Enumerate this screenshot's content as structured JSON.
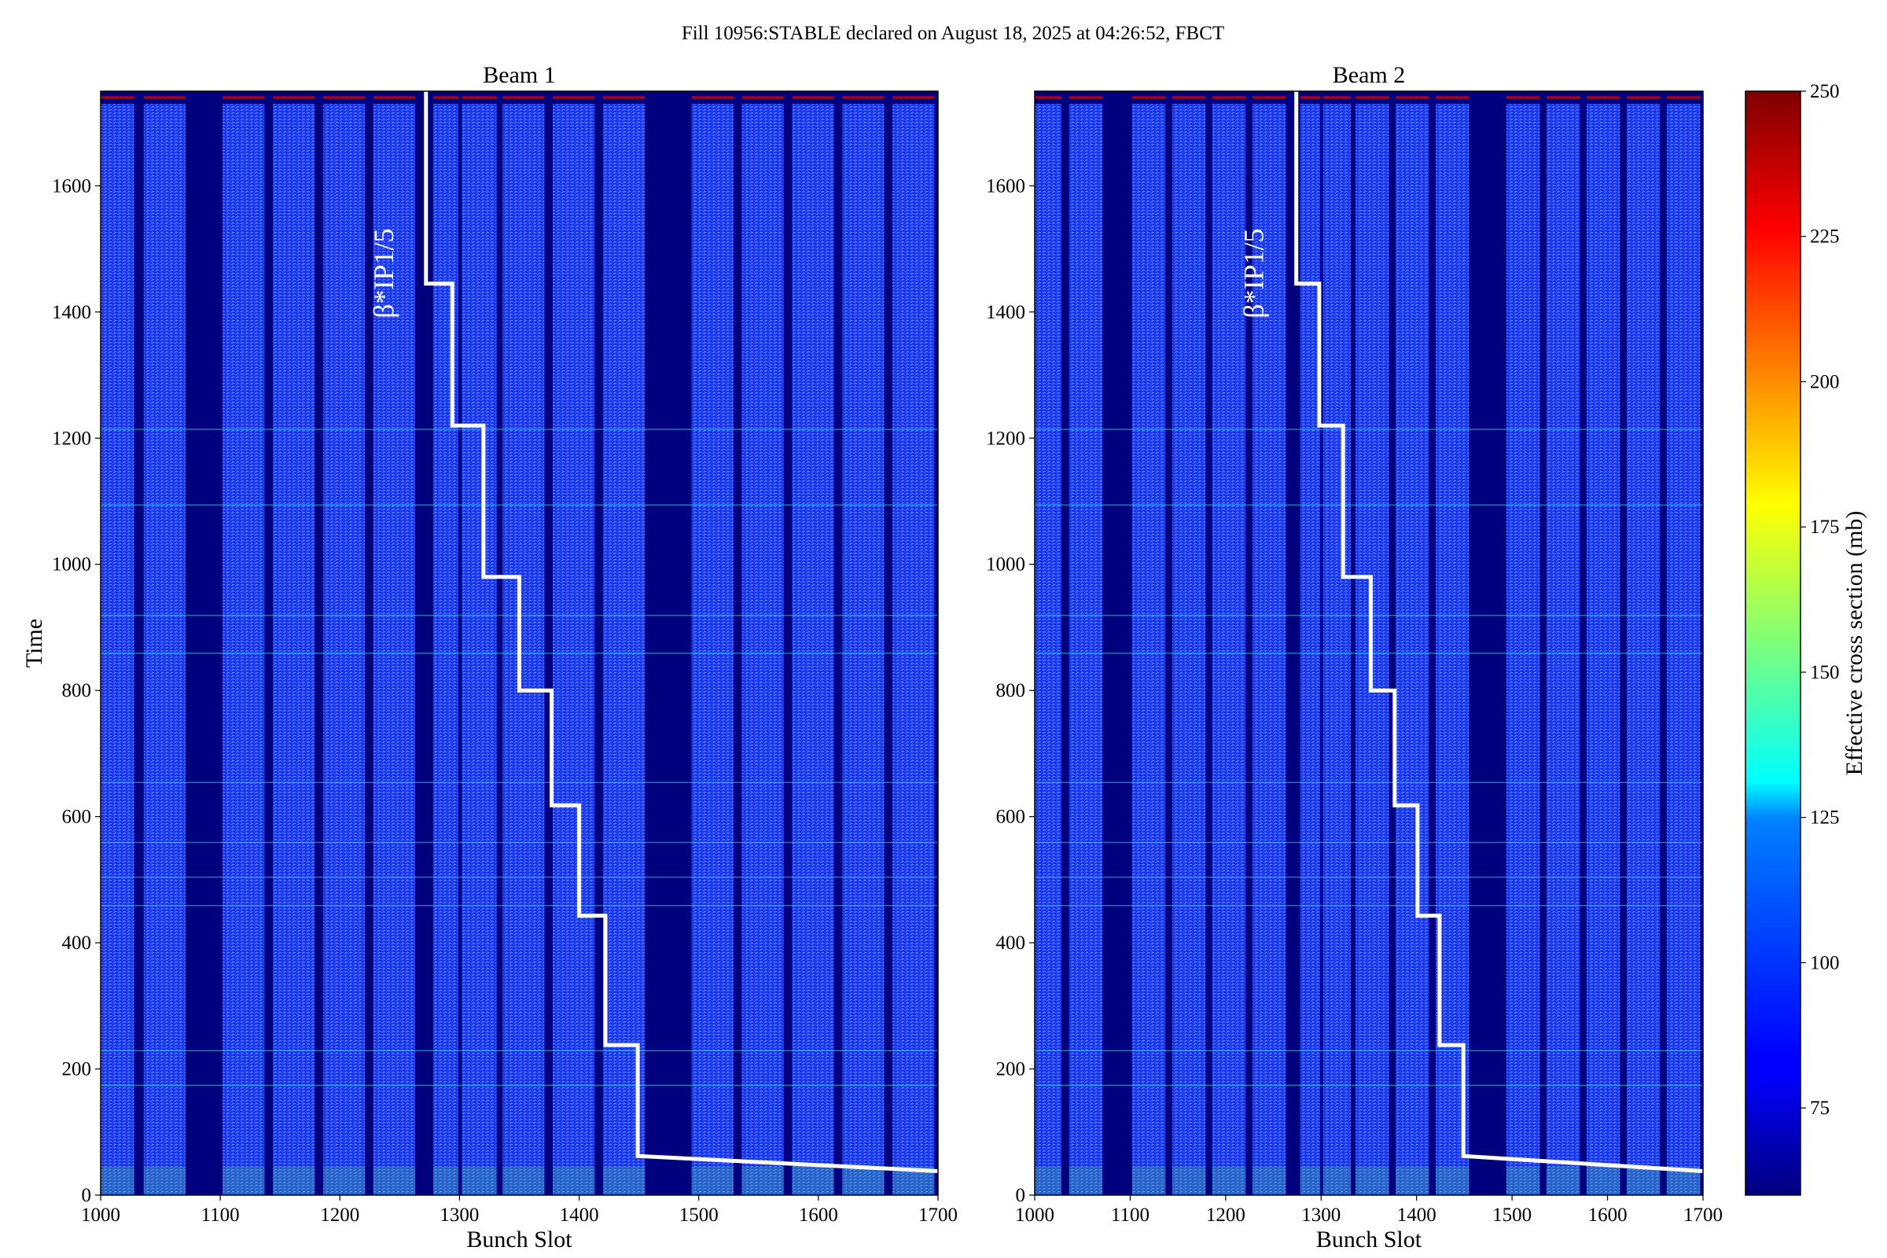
{
  "figure": {
    "suptitle": "Fill 10956:STABLE declared on August 18, 2025 at 04:26:52, FBCT"
  },
  "chart_data": [
    {
      "type": "heatmap",
      "title": "Beam 1",
      "xlabel": "Bunch Slot",
      "ylabel": "Time",
      "xlim": [
        1000,
        1700
      ],
      "ylim": [
        0,
        1750
      ],
      "x_ticks": [
        1000,
        1100,
        1200,
        1300,
        1400,
        1500,
        1600,
        1700
      ],
      "y_ticks": [
        0,
        200,
        400,
        600,
        800,
        1000,
        1200,
        1400,
        1600
      ],
      "filled_bunch_trains": [
        [
          1000,
          1028
        ],
        [
          1036,
          1071
        ],
        [
          1102,
          1137
        ],
        [
          1144,
          1179
        ],
        [
          1186,
          1221
        ],
        [
          1228,
          1263
        ],
        [
          1278,
          1299
        ],
        [
          1302,
          1331
        ],
        [
          1336,
          1371
        ],
        [
          1378,
          1413
        ],
        [
          1420,
          1455
        ],
        [
          1494,
          1529
        ],
        [
          1536,
          1571
        ],
        [
          1578,
          1613
        ],
        [
          1620,
          1655
        ],
        [
          1662,
          1697
        ]
      ],
      "colorscale": "jet",
      "annotation": "β*IP1/5",
      "beta_star_line": {
        "x": [
          1272,
          1272,
          1294,
          1294,
          1320,
          1320,
          1350,
          1350,
          1377,
          1377,
          1400,
          1400,
          1422,
          1422,
          1449,
          1449,
          1700
        ],
        "y": [
          1750,
          1445,
          1445,
          1220,
          1220,
          980,
          980,
          800,
          800,
          618,
          618,
          443,
          443,
          238,
          238,
          62,
          38
        ]
      }
    },
    {
      "type": "heatmap",
      "title": "Beam 2",
      "xlabel": "Bunch Slot",
      "ylabel": "",
      "xlim": [
        1000,
        1700
      ],
      "ylim": [
        0,
        1750
      ],
      "x_ticks": [
        1000,
        1100,
        1200,
        1300,
        1400,
        1500,
        1600,
        1700
      ],
      "y_ticks": [
        0,
        200,
        400,
        600,
        800,
        1000,
        1200,
        1400,
        1600
      ],
      "filled_bunch_trains": [
        [
          1000,
          1028
        ],
        [
          1036,
          1071
        ],
        [
          1102,
          1137
        ],
        [
          1144,
          1179
        ],
        [
          1186,
          1221
        ],
        [
          1228,
          1263
        ],
        [
          1278,
          1299
        ],
        [
          1302,
          1331
        ],
        [
          1336,
          1371
        ],
        [
          1378,
          1413
        ],
        [
          1420,
          1455
        ],
        [
          1494,
          1529
        ],
        [
          1536,
          1571
        ],
        [
          1578,
          1613
        ],
        [
          1620,
          1655
        ],
        [
          1662,
          1697
        ]
      ],
      "colorscale": "jet",
      "annotation": "β*IP1/5",
      "beta_star_line": {
        "x": [
          1274,
          1274,
          1298,
          1298,
          1323,
          1323,
          1352,
          1352,
          1377,
          1377,
          1401,
          1401,
          1424,
          1424,
          1449,
          1449,
          1700
        ],
        "y": [
          1750,
          1445,
          1445,
          1220,
          1220,
          980,
          980,
          800,
          800,
          618,
          618,
          443,
          443,
          238,
          238,
          62,
          38
        ]
      }
    }
  ],
  "colorbar": {
    "label": "Effective cross section (mb)",
    "min": 60,
    "max": 250,
    "ticks": [
      75,
      100,
      125,
      150,
      175,
      200,
      225,
      250
    ]
  }
}
